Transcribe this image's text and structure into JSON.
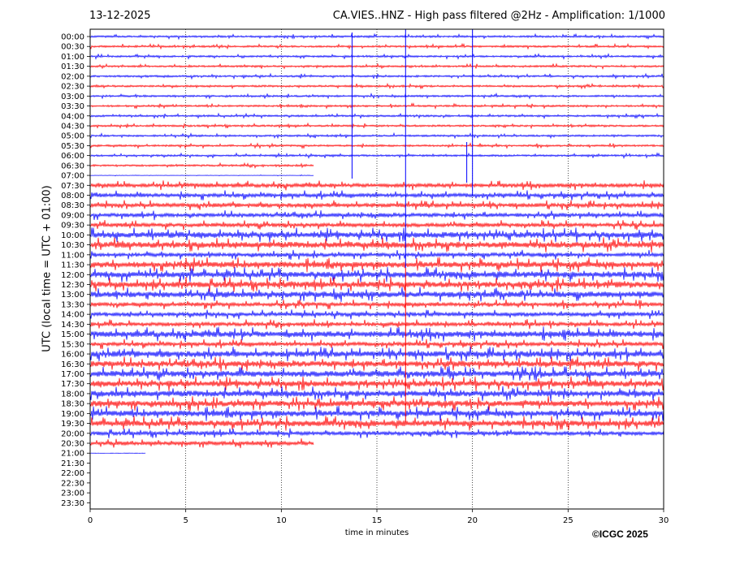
{
  "header": {
    "date": "13-12-2025",
    "title": "CA.VIES..HNZ - High pass filtered @2Hz - Amplification: 1/1000"
  },
  "footer": {
    "copyright": "©ICGC 2025"
  },
  "colors": {
    "red": "#ff0000",
    "blue": "#0000ff",
    "grid": "#000000"
  },
  "chart_data": {
    "type": "line",
    "title": "CA.VIES..HNZ - High pass filtered @2Hz - Amplification: 1/1000",
    "xlabel": "time in minutes",
    "ylabel": "UTC (local time = UTC + 01:00)",
    "xlim": [
      0,
      30
    ],
    "x_ticks": [
      0,
      5,
      10,
      15,
      20,
      25,
      30
    ],
    "vertical_grid": [
      5,
      10,
      15,
      20,
      25
    ],
    "grid": "vertical dotted",
    "rows": [
      "00:00",
      "00:30",
      "01:00",
      "01:30",
      "02:00",
      "02:30",
      "03:00",
      "03:30",
      "04:00",
      "04:30",
      "05:00",
      "05:30",
      "06:00",
      "06:30",
      "07:00",
      "07:30",
      "08:00",
      "08:30",
      "09:00",
      "09:30",
      "10:00",
      "10:30",
      "11:00",
      "11:30",
      "12:00",
      "12:30",
      "13:00",
      "13:30",
      "14:00",
      "14:30",
      "15:00",
      "15:30",
      "16:00",
      "16:30",
      "17:00",
      "17:30",
      "18:00",
      "18:30",
      "19:00",
      "19:30",
      "20:00",
      "20:30",
      "21:00",
      "21:30",
      "22:00",
      "22:30",
      "23:00",
      "23:30"
    ],
    "row_colors": "alternating blue / red, 00:00 blue",
    "activity": [
      1,
      1,
      1,
      1,
      1,
      1,
      1,
      1,
      1,
      1,
      1,
      1,
      1,
      1,
      0,
      2,
      2,
      2,
      2,
      2,
      3,
      3,
      2,
      3,
      3,
      3,
      3,
      2,
      2,
      2,
      3,
      2,
      3,
      3,
      3,
      3,
      3,
      3,
      3,
      3,
      2,
      2,
      0,
      0,
      0,
      0,
      0,
      0
    ],
    "partial_traces": {
      "06:30": 11.7,
      "07:00": 11.7,
      "20:30": 11.7,
      "21:00": 2.9
    },
    "events_minutes": [
      13.7,
      16.5,
      20.0
    ]
  }
}
